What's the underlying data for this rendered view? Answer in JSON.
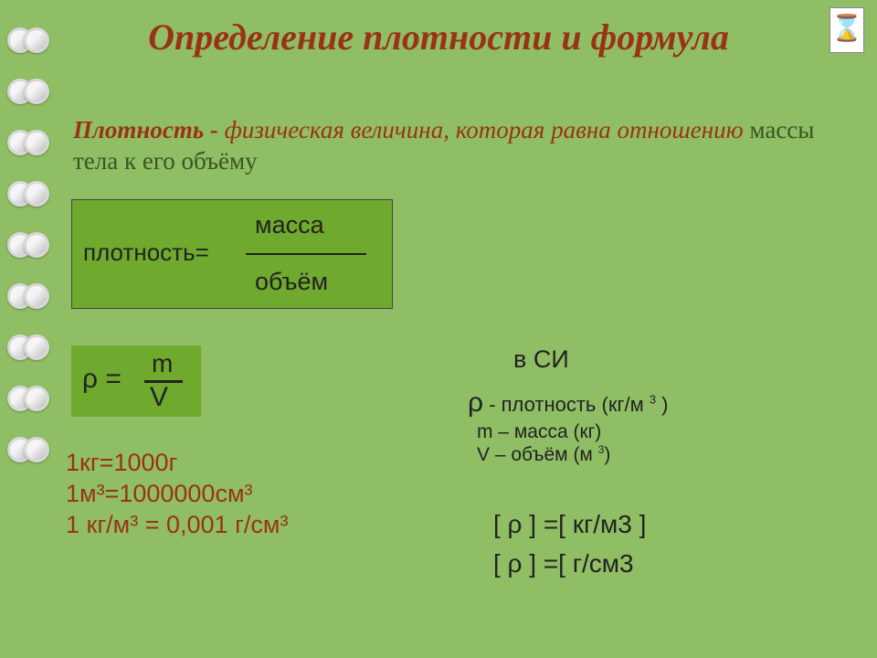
{
  "title": "Определение плотности и формула",
  "subtitle": {
    "lead_bold": "Плотность - ",
    "mid1": "физическая величина, которая равна ",
    "mid2": "отношению",
    "tail": " массы тела к его объёму"
  },
  "box1": {
    "bg_color": "#6fa92e",
    "lhs": "плотность=",
    "numerator": "масса",
    "denominator": "объём"
  },
  "box2": {
    "bg_color": "#6fa92e",
    "lhs": "ρ =",
    "numerator": "m",
    "denominator": "V"
  },
  "conversions": {
    "line1": "1кг=1000г",
    "line2": "1м³=1000000см³",
    "line3": "1 кг/м³ = 0,001 г/см³"
  },
  "si": {
    "header": "в СИ",
    "rho_sym": "ρ",
    "rho_text": " - плотность  (кг/м ",
    "rho_sup": "3",
    "rho_close": " )",
    "mass": "m – масса (кг)",
    "volume_pre": "V – объём (м ",
    "volume_sup": "3",
    "volume_post": ")"
  },
  "units": {
    "line1": "[ ρ ]  =[ кг/м3 ]",
    "line2": "[ ρ ]  =[ г/см3"
  },
  "hourglass_icon": "⌛",
  "colors": {
    "background": "#8fbe64",
    "title_color": "#9a3316",
    "text_dark": "#222222",
    "box_fill": "#6fa92e"
  },
  "ring_count": 9
}
